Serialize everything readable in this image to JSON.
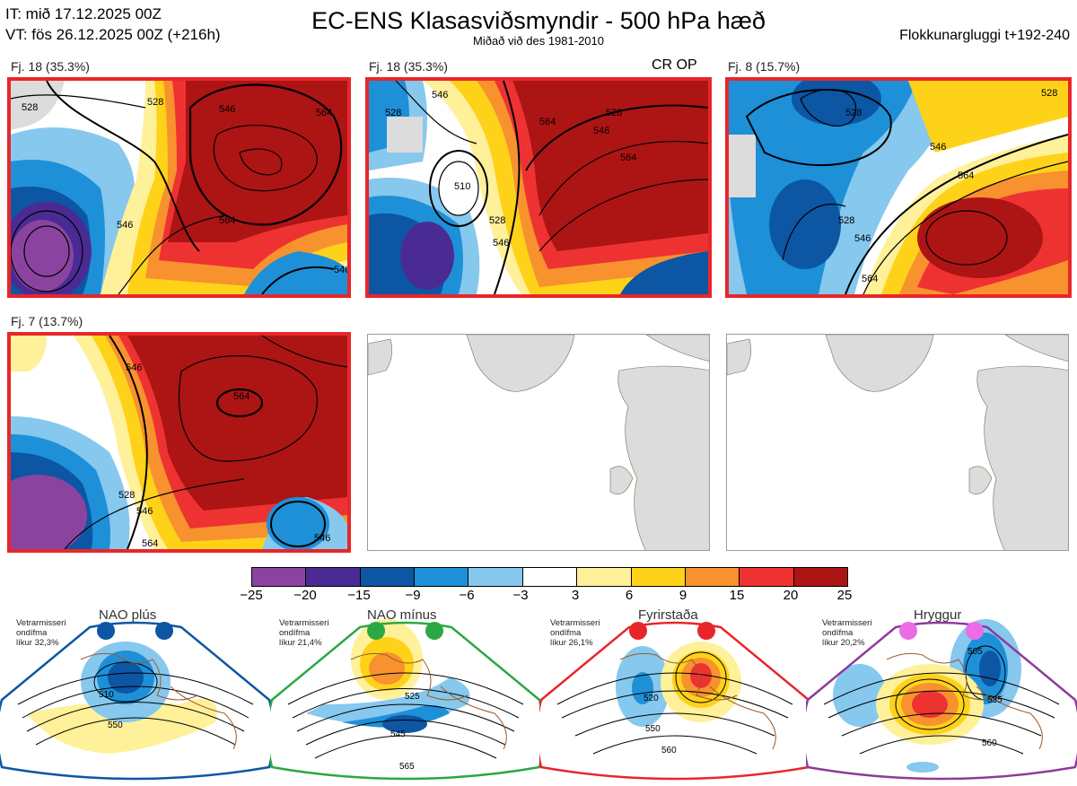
{
  "header": {
    "init_time": "IT: mið 17.12.2025 00Z",
    "valid_time": "VT: fös 26.12.2025 00Z  (+216h)",
    "title": "EC-ENS Klasasviðsmyndir - 500 hPa hæð",
    "subtitle": "Miðað við des 1981-2010",
    "window": "Flokkunargluggi t+192-240"
  },
  "panels": [
    {
      "label": "Fj. 18 (35.3%)",
      "contours": [
        "528",
        "546",
        "564",
        "546",
        "564",
        "546",
        "528"
      ]
    },
    {
      "label": "Fj. 18 (35.3%)",
      "extra": "CR OP",
      "contours": [
        "528",
        "546",
        "564",
        "528",
        "546",
        "564",
        "510",
        "528",
        "546"
      ]
    },
    {
      "label": "Fj. 8 (15.7%)",
      "contours": [
        "528",
        "546",
        "564",
        "528",
        "546",
        "564",
        "528"
      ]
    },
    {
      "label": "Fj. 7 (13.7%)",
      "contours": [
        "546",
        "564",
        "528",
        "546",
        "564",
        "546"
      ]
    }
  ],
  "colorbar": {
    "ticks": [
      "−25",
      "−20",
      "−15",
      "−9",
      "−6",
      "−3",
      "3",
      "6",
      "9",
      "15",
      "20",
      "25"
    ],
    "colors": [
      "#8a44a0",
      "#4a2b93",
      "#0c56a4",
      "#1e90d8",
      "#86c8ee",
      "#ffffff",
      "#fff09a",
      "#ffd21a",
      "#f7922e",
      "#ee3232",
      "#ad1414"
    ]
  },
  "regimes": [
    {
      "title": "NAO plús",
      "info": [
        "Vetrarmisseri",
        "ondífma",
        "líkur 32,3%"
      ],
      "color": "#0c56a4",
      "contours": [
        "510",
        "550"
      ]
    },
    {
      "title": "NAO mínus",
      "info": [
        "Vetrarmisseri",
        "ondífma",
        "líkur 21,4%"
      ],
      "color": "#2aa843",
      "contours": [
        "525",
        "545",
        "565"
      ]
    },
    {
      "title": "Fyrirstaða",
      "info": [
        "Vetrarmisseri",
        "ondífma",
        "líkur 26,1%"
      ],
      "color": "#e8262a",
      "contours": [
        "520",
        "550",
        "560"
      ]
    },
    {
      "title": "Hryggur",
      "info": [
        "Vetrarmisseri",
        "ondífma",
        "líkur 20,2%"
      ],
      "color": "#8e3b9a",
      "contours": [
        "505",
        "535",
        "560"
      ]
    }
  ]
}
